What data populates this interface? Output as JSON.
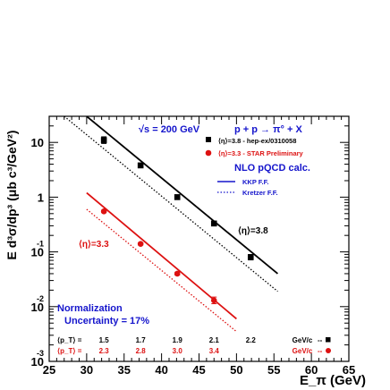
{
  "chart_data": {
    "type": "scatter",
    "title": "",
    "xlabel": "E_π (GeV)",
    "ylabel": "E d³σ/dp³ (μb c³/GeV²)",
    "xlim": [
      25,
      65
    ],
    "ylim": [
      0.001,
      30
    ],
    "yscale": "log",
    "grid": false,
    "x_ticks": [
      25,
      30,
      35,
      40,
      45,
      50,
      55,
      60,
      65
    ],
    "y_ticks": [
      {
        "value": 10,
        "base": "10",
        "exp": ""
      },
      {
        "value": 1,
        "base": "1",
        "exp": ""
      },
      {
        "value": 0.1,
        "base": "10",
        "exp": "-1"
      },
      {
        "value": 0.01,
        "base": "10",
        "exp": "-2"
      },
      {
        "value": 0.001,
        "base": "10",
        "exp": "-3"
      }
    ],
    "header": {
      "energy": "√s = 200 GeV",
      "reaction": "p + p → π° + X"
    },
    "series": [
      {
        "name": "⟨η⟩=3.8 - hep-ex/0310058",
        "marker": "square",
        "color": "#000000",
        "points": [
          {
            "x": 32.3,
            "y": 11.0,
            "err": 0.15
          },
          {
            "x": 37.2,
            "y": 3.8,
            "err": 0.1
          },
          {
            "x": 42.1,
            "y": 1.0,
            "err": 0.1
          },
          {
            "x": 47.0,
            "y": 0.33,
            "err": 0.1
          },
          {
            "x": 51.9,
            "y": 0.08,
            "err": 0.12
          }
        ]
      },
      {
        "name": "⟨η⟩=3.3 - STAR Preliminary",
        "marker": "circle",
        "color": "#dd1111",
        "points": [
          {
            "x": 32.3,
            "y": 0.55,
            "err": 0.05
          },
          {
            "x": 37.2,
            "y": 0.14,
            "err": 0.05
          },
          {
            "x": 42.1,
            "y": 0.04,
            "err": 0.06
          },
          {
            "x": 47.0,
            "y": 0.013,
            "err": 0.15
          }
        ]
      }
    ],
    "curves": [
      {
        "name": "KKP F.F.",
        "set": "⟨η⟩=3.8",
        "style": "solid",
        "color": "#000000",
        "x": [
          30.0,
          55.5
        ],
        "y": [
          30.0,
          0.04
        ]
      },
      {
        "name": "Kretzer F.F.",
        "set": "⟨η⟩=3.8",
        "style": "dotted",
        "color": "#000000",
        "x": [
          27.0,
          55.5
        ],
        "y": [
          30.0,
          0.019
        ]
      },
      {
        "name": "KKP F.F.",
        "set": "⟨η⟩=3.3",
        "style": "solid",
        "color": "#dd1111",
        "x": [
          30.0,
          50.0
        ],
        "y": [
          1.2,
          0.006
        ]
      },
      {
        "name": "Kretzer F.F.",
        "set": "⟨η⟩=3.3",
        "style": "dotted",
        "color": "#dd1111",
        "x": [
          30.0,
          50.0
        ],
        "y": [
          0.6,
          0.0035
        ]
      }
    ],
    "legend": {
      "placement": "top-right",
      "nlo_title": "NLO pQCD calc.",
      "kkp": "KKP F.F.",
      "kretzer": "Kretzer F.F."
    },
    "annotations": {
      "eta38": "⟨η⟩=3.8",
      "eta33": "⟨η⟩=3.3",
      "norm_line1": "Normalization",
      "norm_line2": "Uncertainty = 17%"
    },
    "pt_rows": [
      {
        "label": "⟨p_T⟩ =",
        "color": "#000000",
        "values": [
          "1.5",
          "1.7",
          "1.9",
          "2.1",
          "2.2"
        ],
        "unit": "GeV/c",
        "marker": "square"
      },
      {
        "label": "⟨p_T⟩ =",
        "color": "#dd1111",
        "values": [
          "2.3",
          "2.8",
          "3.0",
          "3.4"
        ],
        "unit": "GeV/c",
        "marker": "circle"
      }
    ],
    "colors": {
      "blue": "#1515cc",
      "red": "#dd1111",
      "black": "#000000"
    }
  }
}
